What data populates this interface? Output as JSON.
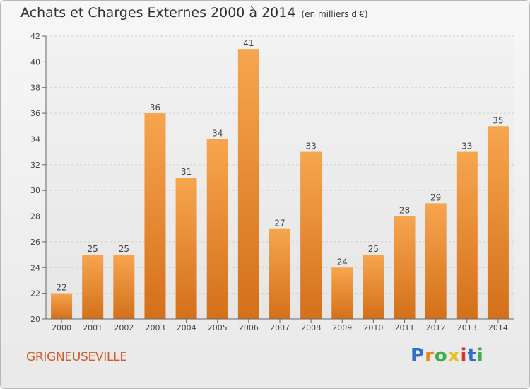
{
  "header": {
    "title": "Achats et Charges Externes 2000 à 2014",
    "unit": "(en milliers d'€)"
  },
  "footer": {
    "place": "GRIGNEUSEVILLE",
    "brand": "Proxiti",
    "brand_colors": [
      "#2f6fcf",
      "#e8861c",
      "#3fae49",
      "#e8c11c",
      "#d9342b",
      "#2f6fcf",
      "#3fae49"
    ]
  },
  "chart_data": {
    "type": "bar",
    "categories": [
      "2000",
      "2001",
      "2002",
      "2003",
      "2004",
      "2005",
      "2006",
      "2007",
      "2008",
      "2009",
      "2010",
      "2011",
      "2012",
      "2013",
      "2014"
    ],
    "values": [
      22,
      25,
      25,
      36,
      31,
      34,
      41,
      27,
      33,
      24,
      25,
      28,
      29,
      33,
      35
    ],
    "ylim": [
      20,
      42
    ],
    "yticks": [
      20,
      22,
      24,
      26,
      28,
      30,
      32,
      34,
      36,
      38,
      40,
      42
    ],
    "grid": true,
    "bar_color_top": "#f7a54f",
    "bar_color_bottom": "#d4701a"
  }
}
